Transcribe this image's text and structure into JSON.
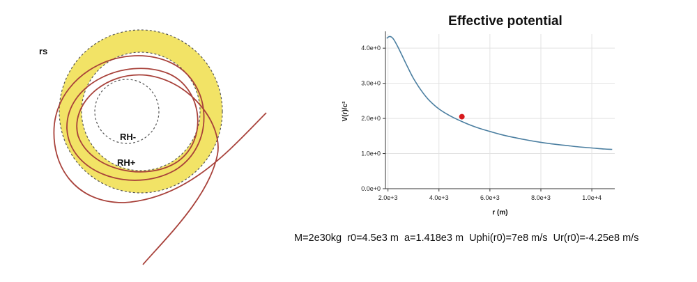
{
  "orbit": {
    "labels": {
      "rs": "rs",
      "rh_minus": "RH-",
      "rh_plus": "RH+"
    },
    "colors": {
      "band": "#f2e366",
      "orbit": "#a8413a",
      "dash": "#555555"
    }
  },
  "parameters_text": "M=2e30kg  r0=4.5e3 m  a=1.418e3 m  Uphi(r0)=7e8 m/s  Ur(r0)=-4.25e8 m/s",
  "chart_data": {
    "type": "line",
    "title": "Effective potential",
    "xlabel": "r (m)",
    "ylabel": "V(r)/c²",
    "x_ticks": [
      "2.0e+3",
      "4.0e+3",
      "6.0e+3",
      "8.0e+3",
      "1.0e+4"
    ],
    "y_ticks": [
      "0.0e+0",
      "1.0e+0",
      "2.0e+0",
      "3.0e+0",
      "4.0e+0"
    ],
    "xlim": [
      1900,
      10900
    ],
    "ylim": [
      0,
      4.4
    ],
    "grid": true,
    "series": [
      {
        "x": [
          1950,
          2050,
          2150,
          2250,
          2400,
          2600,
          2800,
          3000,
          3300,
          3600,
          4000,
          4500,
          5000,
          5500,
          6000,
          6500,
          7000,
          7500,
          8000,
          8500,
          9000,
          9500,
          10000,
          10500,
          10800
        ],
        "y": [
          4.28,
          4.33,
          4.31,
          4.22,
          4.02,
          3.72,
          3.42,
          3.14,
          2.8,
          2.53,
          2.27,
          2.05,
          1.88,
          1.74,
          1.63,
          1.53,
          1.45,
          1.38,
          1.32,
          1.27,
          1.23,
          1.19,
          1.16,
          1.13,
          1.12
        ]
      }
    ],
    "marker": {
      "x": 4900,
      "y": 2.05
    },
    "colors": {
      "line": "#4a7ea0",
      "marker": "#d7191c",
      "grid": "#e2e2e2",
      "axis": "#333333"
    }
  }
}
